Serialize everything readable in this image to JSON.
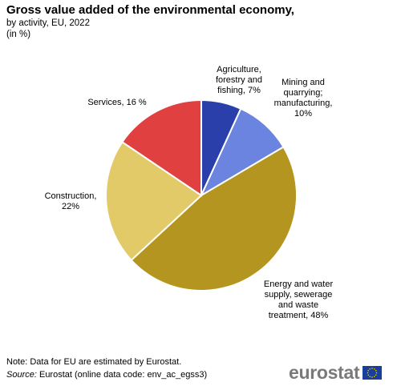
{
  "chart_data": {
    "type": "pie",
    "title": "Gross value added of the environmental economy,",
    "subtitle_lines": [
      "by activity, EU, 2022",
      "(in %)"
    ],
    "slices": [
      {
        "label_lines": [
          "Agriculture,",
          "forestry and",
          "fishing, 7%"
        ],
        "value": 7,
        "color": "#2a3fa9"
      },
      {
        "label_lines": [
          "Mining and",
          "quarrying;",
          "manufacturing,",
          "10%"
        ],
        "value": 10,
        "color": "#6b84e0"
      },
      {
        "label_lines": [
          "Energy and water",
          "supply, sewerage",
          "and waste",
          "treatment, 48%"
        ],
        "value": 48,
        "color": "#b4951f"
      },
      {
        "label_lines": [
          "Construction,",
          "22%"
        ],
        "value": 22,
        "color": "#e2ca68"
      },
      {
        "label_lines": [
          "Services,  16 %"
        ],
        "value": 16,
        "color": "#e04040"
      }
    ]
  },
  "footer": {
    "note": "Note: Data for EU are estimated by Eurostat.",
    "source_label": "Source:",
    "source_text": " Eurostat (online data code: env_ac_egss3)"
  },
  "logo": {
    "text": "eurostat",
    "flag_color": "#1a3f9b",
    "star_color": "#f5d400"
  }
}
